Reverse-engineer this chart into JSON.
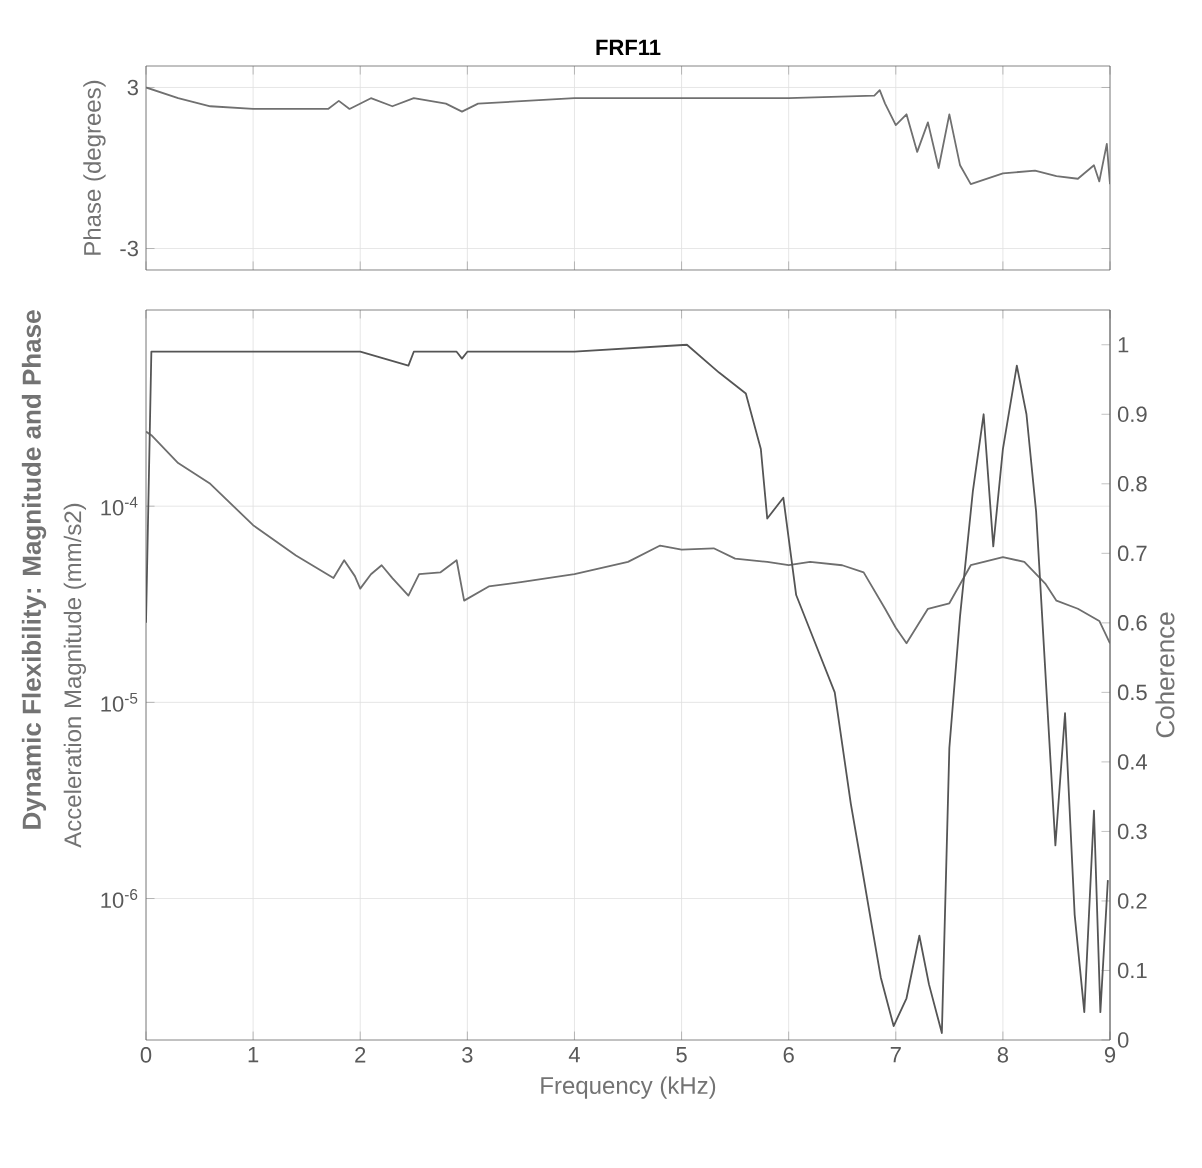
{
  "chart_data": [
    {
      "type": "line",
      "title": "FRF11",
      "ylabel": "Phase (degrees)",
      "xlim": [
        0,
        9
      ],
      "xticks": [
        0,
        1,
        2,
        3,
        4,
        5,
        6,
        7,
        8,
        9
      ],
      "ylim": [
        -3.8,
        3.8
      ],
      "yticks": [
        -3,
        3
      ],
      "tick_labels": "y",
      "grid": true,
      "series": [
        {
          "color": "#707070",
          "x": [
            0,
            0.3,
            0.6,
            1,
            1.7,
            1.8,
            1.9,
            2.1,
            2.3,
            2.5,
            2.8,
            2.95,
            3.1,
            4,
            5,
            6,
            6.8,
            6.85,
            6.9,
            7.0,
            7.1,
            7.2,
            7.3,
            7.4,
            7.5,
            7.6,
            7.7,
            8,
            8.3,
            8.5,
            8.7,
            8.85,
            8.9,
            8.97,
            9
          ],
          "values": [
            3,
            2.6,
            2.3,
            2.2,
            2.2,
            2.5,
            2.2,
            2.6,
            2.3,
            2.6,
            2.4,
            2.1,
            2.4,
            2.6,
            2.6,
            2.6,
            2.7,
            2.9,
            2.4,
            1.6,
            2.0,
            0.6,
            1.7,
            0,
            2.0,
            0.1,
            -0.6,
            -0.2,
            -0.1,
            -0.3,
            -0.4,
            0.1,
            -0.5,
            0.9,
            -0.6
          ]
        }
      ]
    },
    {
      "type": "line",
      "xlabel": "Frequency (kHz)",
      "ylabel": "Acceleration Magnitude (mm/s2)",
      "y2label": "Coherence",
      "annotations": [
        "Dynamic Flexibility: Magnitude and Phase"
      ],
      "log": "y",
      "grid": true,
      "xlim": [
        0,
        9
      ],
      "xticks": [
        0,
        1,
        2,
        3,
        4,
        5,
        6,
        7,
        8,
        9
      ],
      "ylim": [
        1.9e-07,
        0.001
      ],
      "yticks": [
        {
          "value": 1e-06,
          "label": "10$^{-6}$"
        },
        {
          "value": 1e-05,
          "label": "10$^{-5}$"
        },
        {
          "value": 0.0001,
          "label": "10$^{-4}$"
        }
      ],
      "y2lim": [
        0,
        1.05
      ],
      "y2ticks": [
        0,
        0.1,
        0.2,
        0.3,
        0.4,
        0.5,
        0.6,
        0.7,
        0.8,
        0.9,
        1
      ],
      "series": [
        {
          "color": "#6e6e6e",
          "x": [
            0,
            0.05,
            0.3,
            0.6,
            1.0,
            1.4,
            1.75,
            1.85,
            1.95,
            2.0,
            2.1,
            2.2,
            2.3,
            2.45,
            2.55,
            2.75,
            2.9,
            2.97,
            3.2,
            3.5,
            4.0,
            4.5,
            4.8,
            5.0,
            5.3,
            5.5,
            5.8,
            6.0,
            6.2,
            6.5,
            6.7,
            6.9,
            7.0,
            7.1,
            7.3,
            7.5,
            7.7,
            8.0,
            8.2,
            8.4,
            8.5,
            8.7,
            8.9,
            9.0
          ],
          "values": [
            0.00024,
            0.00023,
            0.000166,
            0.00013,
            8e-05,
            5.6e-05,
            4.3e-05,
            5.3e-05,
            4.4e-05,
            3.8e-05,
            4.5e-05,
            5e-05,
            4.3e-05,
            3.5e-05,
            4.5e-05,
            4.6e-05,
            5.3e-05,
            3.3e-05,
            3.9e-05,
            4.1e-05,
            4.5e-05,
            5.2e-05,
            6.3e-05,
            6e-05,
            6.1e-05,
            5.4e-05,
            5.2e-05,
            5e-05,
            5.2e-05,
            5e-05,
            4.6e-05,
            3e-05,
            2.4e-05,
            2e-05,
            3e-05,
            3.2e-05,
            5e-05,
            5.5e-05,
            5.2e-05,
            4e-05,
            3.3e-05,
            3e-05,
            2.6e-05,
            2e-05
          ]
        },
        {
          "color": "#555555",
          "axis": "y2",
          "x": [
            0,
            0.05,
            1,
            2,
            2.45,
            2.5,
            2.9,
            2.95,
            3.0,
            4,
            5.05,
            5.35,
            5.6,
            5.74,
            5.8,
            5.95,
            6.07,
            6.25,
            6.43,
            6.58,
            6.67,
            6.77,
            6.86,
            6.98,
            7.1,
            7.22,
            7.31,
            7.43,
            7.5,
            7.6,
            7.72,
            7.82,
            7.91,
            8.0,
            8.13,
            8.22,
            8.31,
            8.4,
            8.49,
            8.58,
            8.67,
            8.76,
            8.85,
            8.91,
            8.98
          ],
          "values": [
            0.6,
            0.99,
            0.99,
            0.99,
            0.97,
            0.99,
            0.99,
            0.98,
            0.99,
            0.99,
            1.0,
            0.96,
            0.93,
            0.85,
            0.75,
            0.78,
            0.64,
            0.57,
            0.5,
            0.34,
            0.26,
            0.17,
            0.09,
            0.02,
            0.06,
            0.15,
            0.08,
            0.01,
            0.42,
            0.61,
            0.79,
            0.9,
            0.71,
            0.85,
            0.97,
            0.9,
            0.76,
            0.52,
            0.28,
            0.47,
            0.18,
            0.04,
            0.33,
            0.04,
            0.23
          ]
        }
      ]
    }
  ]
}
